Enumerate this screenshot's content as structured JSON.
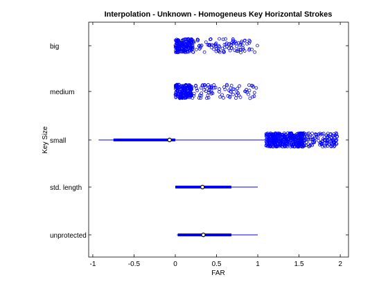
{
  "chart_data": {
    "type": "box",
    "title": "Interpolation - Unknown - Homogeneus Key Horizontal Strokes",
    "xlabel": "FAR",
    "ylabel": "Key Size",
    "xlim": [
      -1.05,
      2.1
    ],
    "xticks": [
      -1,
      -0.5,
      0,
      0.5,
      1,
      1.5,
      2
    ],
    "xtick_labels": [
      "-1",
      "-0.5",
      "0",
      "0.5",
      "1",
      "1.5",
      "2"
    ],
    "color": "#0000ff",
    "grid": false,
    "categories": [
      "big",
      "medium",
      "small",
      "std. length",
      "unprotected"
    ],
    "series": [
      {
        "category": "big",
        "box": null,
        "outliers": {
          "range": [
            0.0,
            1.0
          ],
          "count": 260,
          "dense_until": 0.22
        }
      },
      {
        "category": "medium",
        "box": null,
        "outliers": {
          "range": [
            0.0,
            1.0
          ],
          "count": 260,
          "dense_until": 0.2
        }
      },
      {
        "category": "small",
        "box": {
          "whisker_low": -0.93,
          "q1": -0.75,
          "median": -0.07,
          "q3": 0.0,
          "whisker_high": 1.1
        },
        "outliers": {
          "range": [
            1.1,
            1.97
          ],
          "count": 520,
          "dense_until": 1.55
        }
      },
      {
        "category": "std. length",
        "box": {
          "whisker_low": 0.0,
          "q1": 0.0,
          "median": 0.33,
          "q3": 0.68,
          "whisker_high": 1.0
        },
        "outliers": null
      },
      {
        "category": "unprotected",
        "box": {
          "whisker_low": 0.02,
          "q1": 0.03,
          "median": 0.34,
          "q3": 0.68,
          "whisker_high": 1.0
        },
        "outliers": null
      }
    ]
  }
}
